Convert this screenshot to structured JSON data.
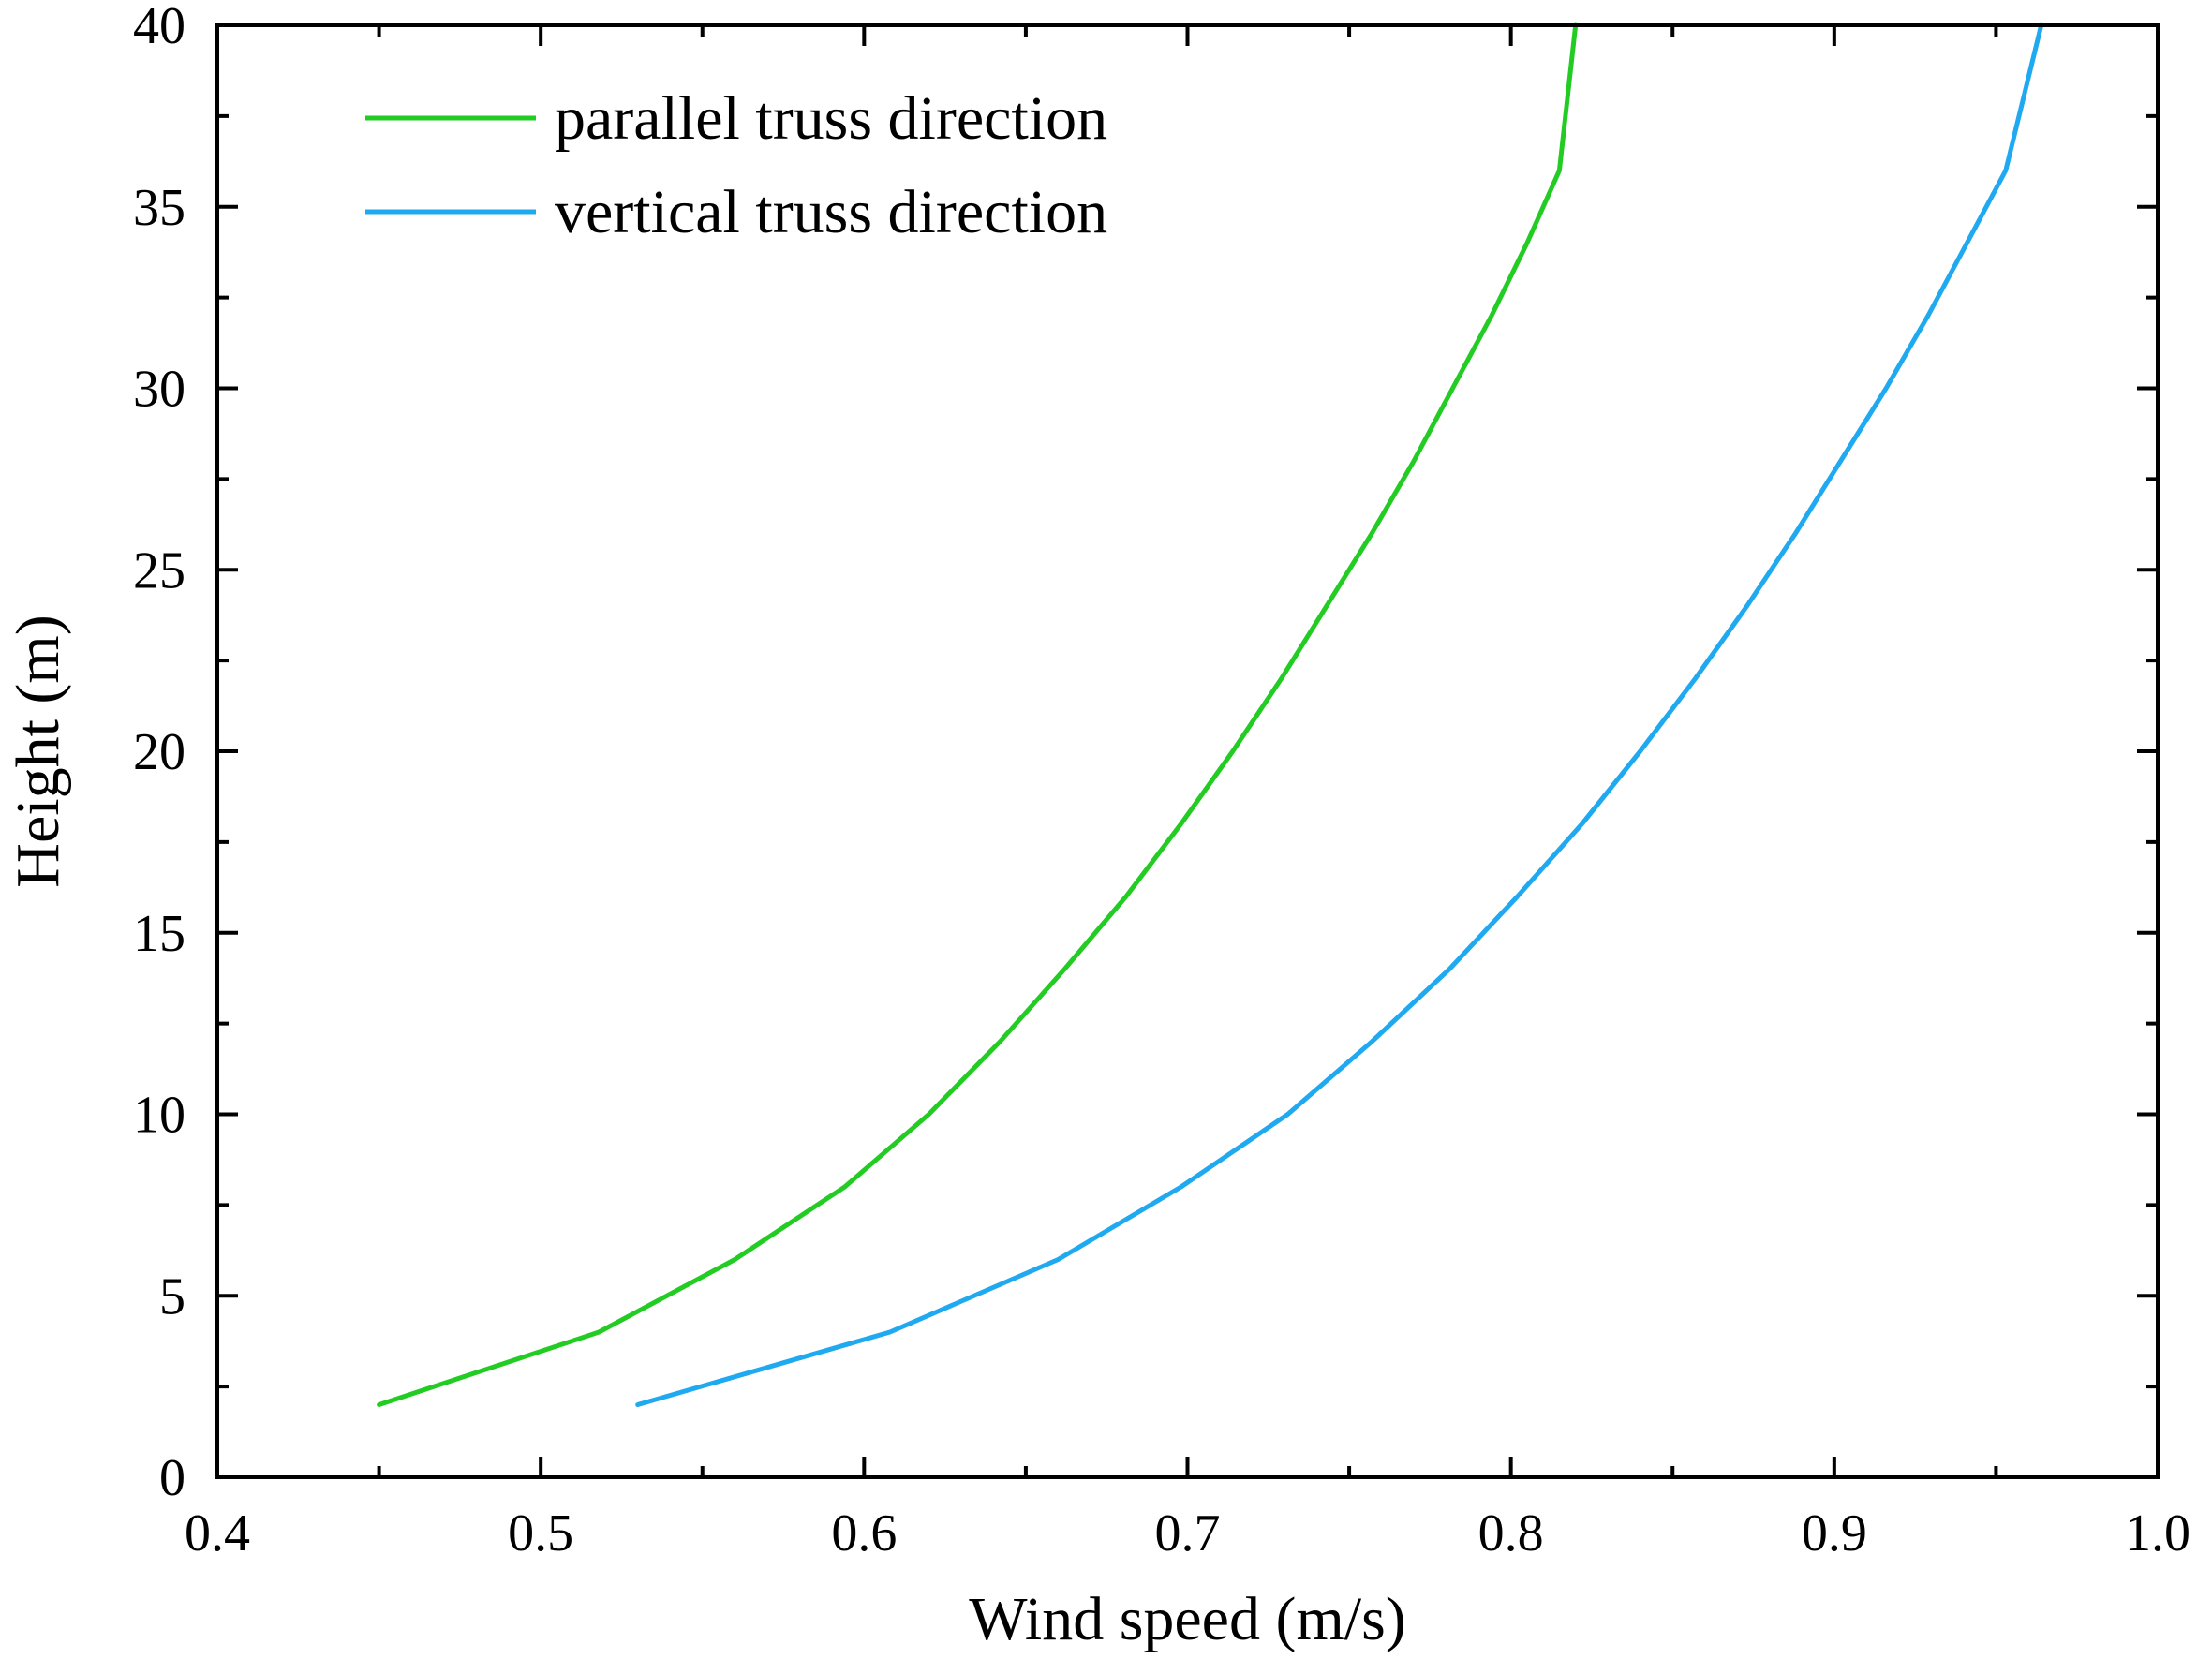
{
  "chart_data": {
    "type": "line",
    "title": "",
    "xlabel": "Wind speed (m/s)",
    "ylabel": "Height (m)",
    "xlim": [
      0.4,
      1.0
    ],
    "ylim": [
      0,
      40
    ],
    "xticks": [
      0.4,
      0.5,
      0.6,
      0.7,
      0.8,
      0.9,
      1.0
    ],
    "xtick_labels": [
      "0.4",
      "0.5",
      "0.6",
      "0.7",
      "0.8",
      "0.9",
      "1.0"
    ],
    "yticks": [
      0,
      5,
      10,
      15,
      20,
      25,
      30,
      35,
      40
    ],
    "ytick_labels": [
      "0",
      "5",
      "10",
      "15",
      "20",
      "25",
      "30",
      "35",
      "40"
    ],
    "grid": false,
    "legend_position": "top-left",
    "series": [
      {
        "name": "parallel truss direction",
        "color": "#22cc22",
        "x": [
          0.45,
          0.518,
          0.56,
          0.594,
          0.62,
          0.642,
          0.662,
          0.681,
          0.698,
          0.714,
          0.729,
          0.743,
          0.757,
          0.77,
          0.782,
          0.794,
          0.805,
          0.815,
          0.82
        ],
        "y": [
          2,
          4,
          6,
          8,
          10,
          12,
          14,
          16,
          18,
          20,
          22,
          24,
          26,
          28,
          30,
          32,
          34,
          36,
          40
        ]
      },
      {
        "name": "vertical truss direction",
        "color": "#1ea9f0",
        "x": [
          0.53,
          0.608,
          0.66,
          0.698,
          0.731,
          0.757,
          0.781,
          0.802,
          0.822,
          0.84,
          0.857,
          0.873,
          0.888,
          0.902,
          0.916,
          0.929,
          0.941,
          0.953,
          0.964
        ],
        "y": [
          2,
          4,
          6,
          8,
          10,
          12,
          14,
          16,
          18,
          20,
          22,
          24,
          26,
          28,
          30,
          32,
          34,
          36,
          40
        ]
      }
    ]
  }
}
